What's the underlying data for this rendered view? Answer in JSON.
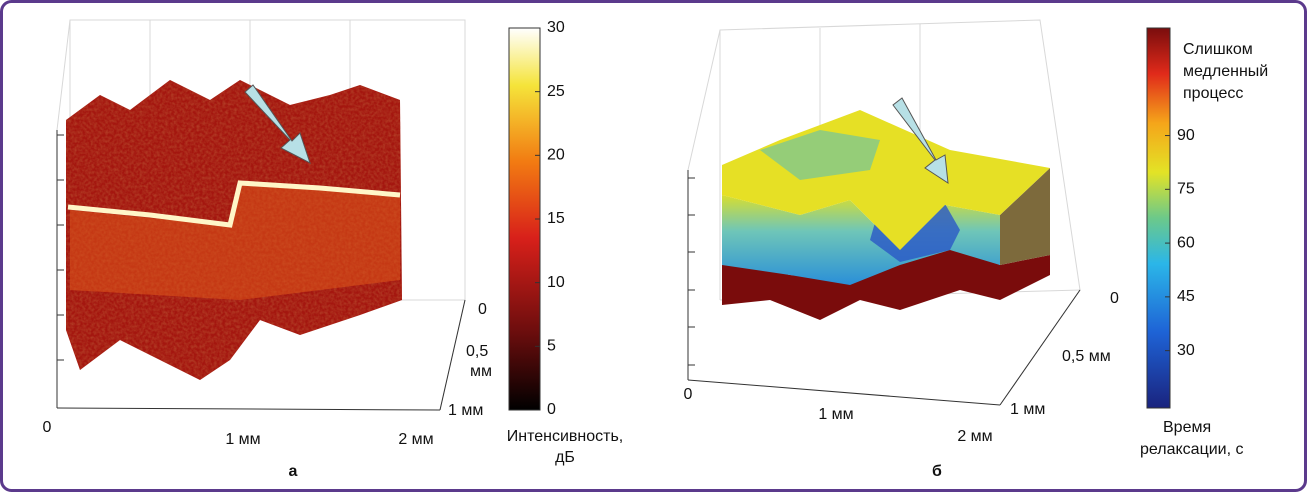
{
  "panels": [
    {
      "label": "а",
      "x_axis_labels": [
        "0",
        "1 мм",
        "2 мм"
      ],
      "depth_axis_labels": [
        [
          "0"
        ],
        [
          "0,5",
          "мм"
        ],
        [
          "1 мм"
        ]
      ],
      "colorbar": {
        "ticks": [
          0,
          5,
          10,
          15,
          20,
          25,
          30
        ],
        "clim": [
          0,
          30
        ],
        "title_lines": [
          "Интенсивность,",
          "дБ"
        ]
      }
    },
    {
      "label": "б",
      "x_axis_labels": [
        "0",
        "1 мм",
        "2 мм"
      ],
      "depth_axis_labels": [
        [
          "0"
        ],
        [
          "0,5 мм"
        ],
        [
          "1 мм"
        ]
      ],
      "colorbar": {
        "ticks": [
          30,
          45,
          60,
          75,
          90
        ],
        "clim": [
          14,
          120
        ],
        "top_label_lines": [
          "Слишком",
          "медленный",
          "процесс"
        ],
        "title_lines": [
          "Время",
          "релаксации, с"
        ]
      }
    }
  ]
}
